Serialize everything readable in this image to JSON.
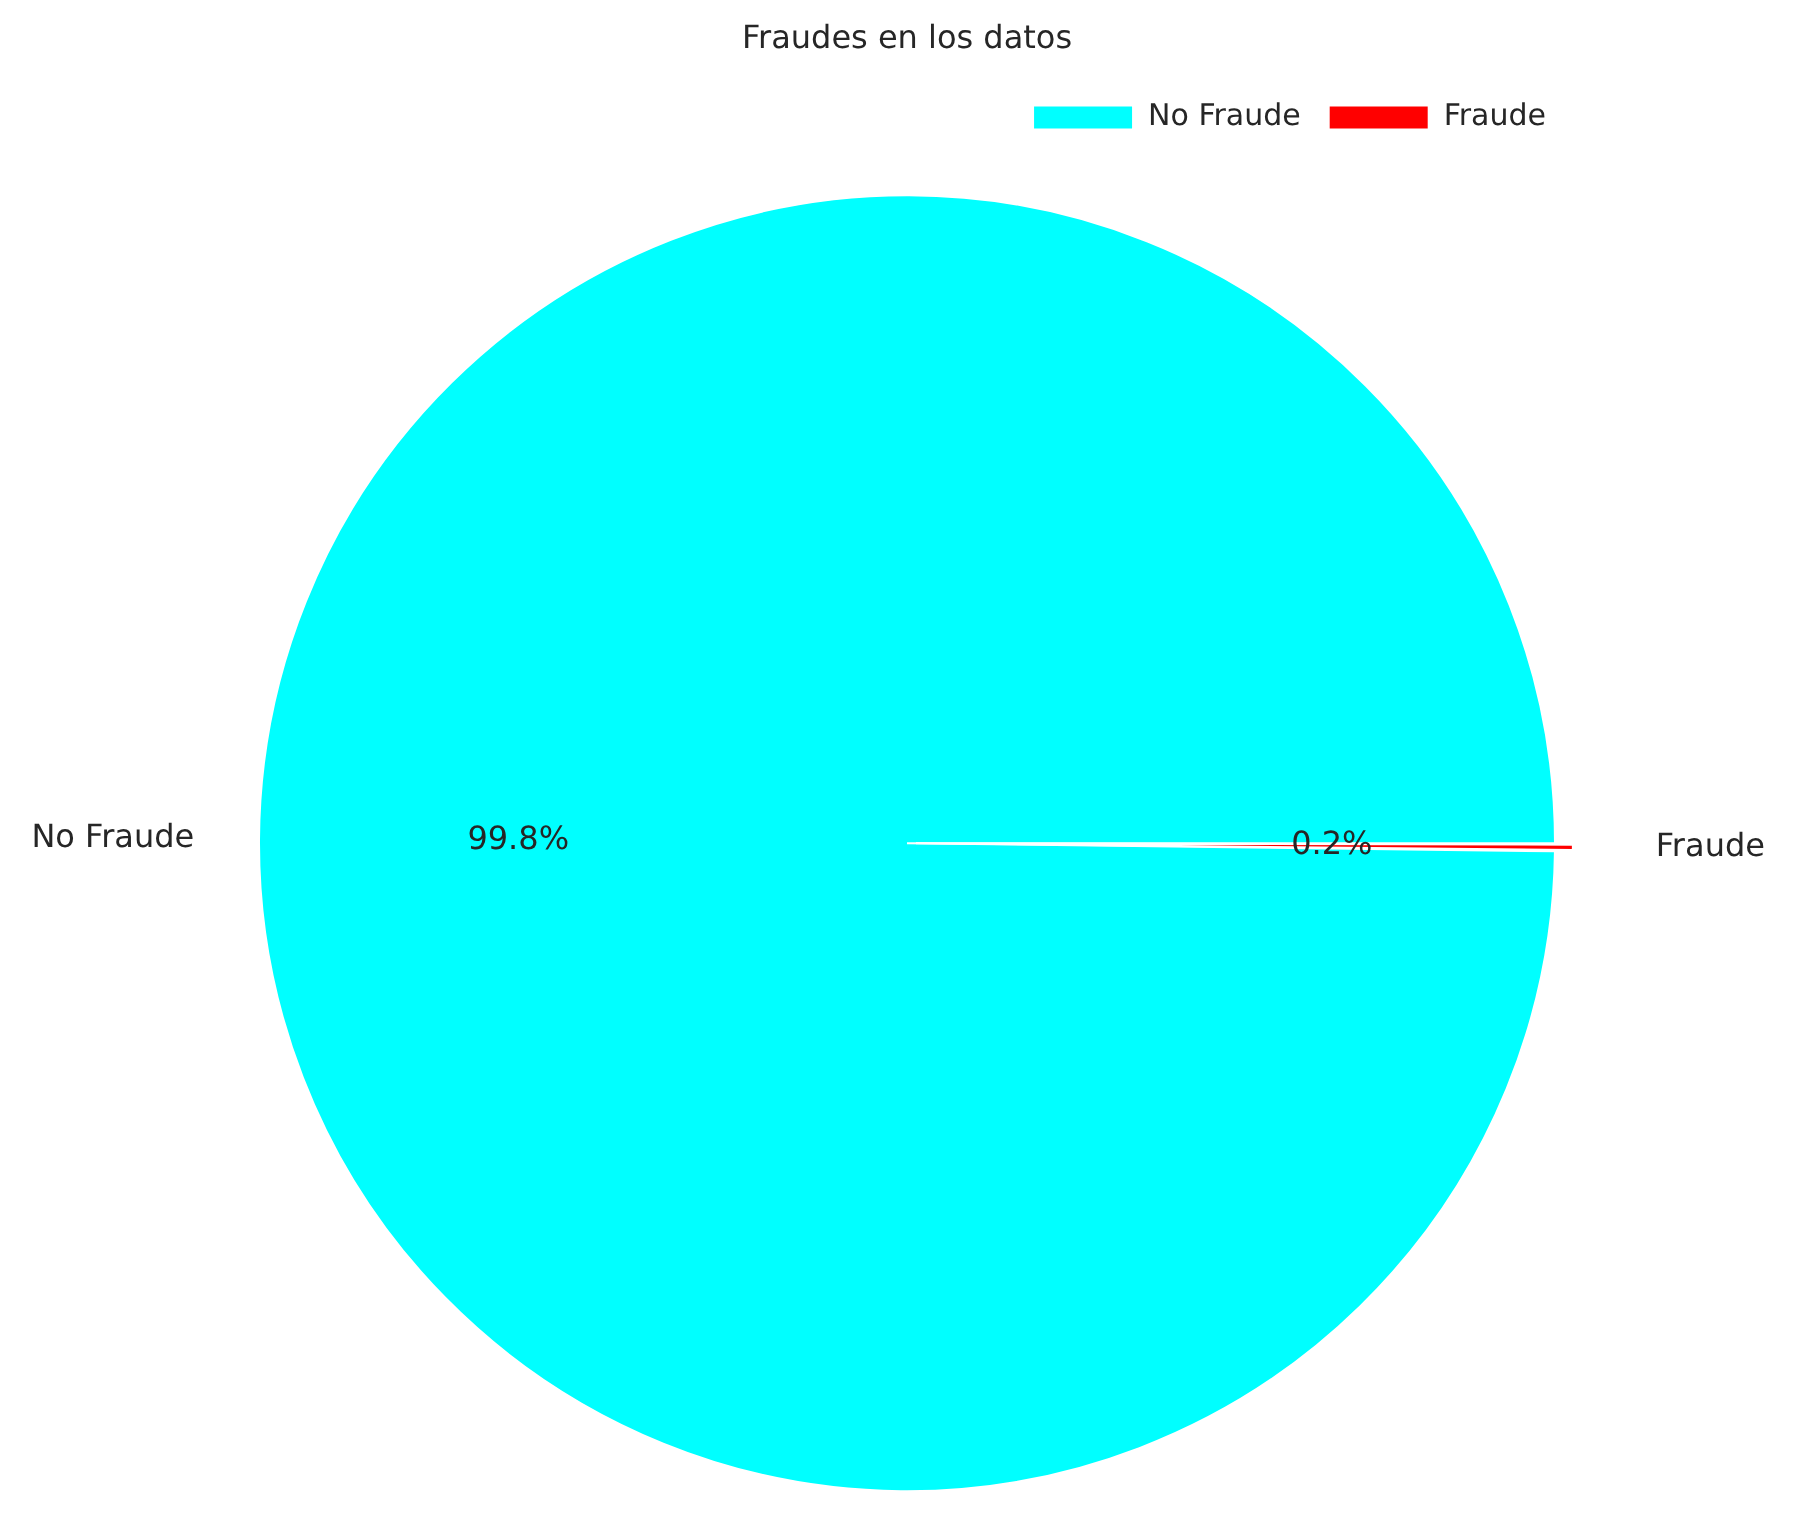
{
  "chart_data": {
    "type": "pie",
    "title": "Fraudes en los datos",
    "categories": [
      "No Fraude",
      "Fraude"
    ],
    "values": [
      99.8,
      0.2
    ],
    "colors": [
      "#00ffff",
      "#ff0000"
    ],
    "value_labels": [
      "99.8%",
      "0.2%"
    ],
    "legend": "top right"
  }
}
